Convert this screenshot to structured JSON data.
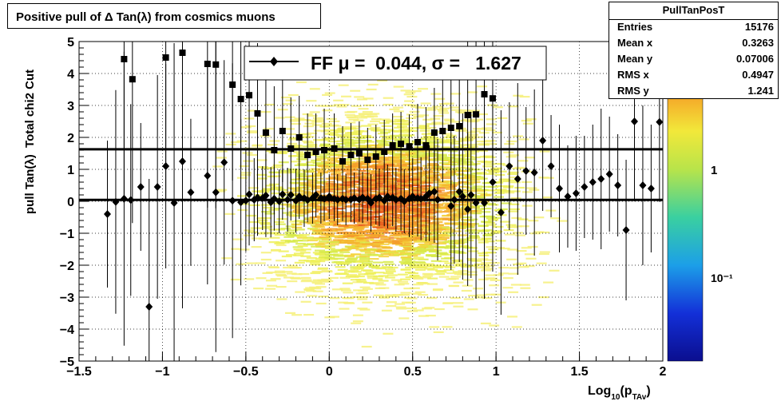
{
  "title": "Positive pull of Δ Tan(λ) from cosmics muons",
  "stats": {
    "name": "PullTanPosT",
    "rows": [
      {
        "label": "Entries",
        "value": "15176"
      },
      {
        "label": "Mean x",
        "value": "0.3263"
      },
      {
        "label": "Mean y",
        "value": "0.07006"
      },
      {
        "label": "RMS x",
        "value": "0.4947"
      },
      {
        "label": "RMS y",
        "value": "1.241"
      }
    ]
  },
  "chart_data": {
    "type": "scatter",
    "title": "Positive pull of Δ Tan(λ) from cosmics muons",
    "xlabel": "Log10(pTAv)",
    "ylabel": "pull Tan(λ)  Total chi2 Cut",
    "xlim": [
      -1.5,
      2
    ],
    "ylim": [
      -5,
      5
    ],
    "xticks": [
      "−1.5",
      "−1",
      "−0.5",
      "0",
      "0.5",
      "1",
      "1.5",
      "2"
    ],
    "yticks": [
      "5",
      "4",
      "3",
      "2",
      "1",
      "0",
      "−1",
      "−2",
      "−3",
      "−4",
      "−5"
    ],
    "colorbar_labels": [
      "1",
      "10⁻¹"
    ],
    "legend": {
      "label": "FF μ =  0.044, σ =   1.627",
      "position": "top-center"
    },
    "hlines": [
      0.044,
      1.627
    ],
    "series": [
      {
        "marker": "diamond",
        "x": [
          -1.33,
          -1.28,
          -1.23,
          -1.19,
          -1.13,
          -1.08,
          -1.03,
          -0.98,
          -0.93,
          -0.88,
          -0.83,
          -0.73,
          -0.68,
          -0.63,
          -0.58,
          -0.53,
          -0.5,
          -0.48,
          -0.45,
          -0.43,
          -0.4,
          -0.38,
          -0.35,
          -0.33,
          -0.3,
          -0.28,
          -0.25,
          -0.23,
          -0.2,
          -0.18,
          -0.15,
          -0.13,
          -0.1,
          -0.08,
          -0.05,
          -0.03,
          0.0,
          0.03,
          0.05,
          0.08,
          0.1,
          0.13,
          0.15,
          0.18,
          0.2,
          0.23,
          0.25,
          0.28,
          0.3,
          0.33,
          0.35,
          0.38,
          0.4,
          0.43,
          0.45,
          0.48,
          0.5,
          0.53,
          0.55,
          0.58,
          0.6,
          0.63,
          0.65,
          0.73,
          0.75,
          0.78,
          0.8,
          0.83,
          0.85,
          0.88,
          0.93,
          0.98,
          1.03,
          1.08,
          1.13,
          1.18,
          1.23,
          1.28,
          1.33,
          1.38,
          1.43,
          1.48,
          1.53,
          1.58,
          1.63,
          1.68,
          1.73,
          1.78,
          1.83,
          1.88,
          1.93,
          1.98
        ],
        "y": [
          -0.4,
          -0.02,
          0.08,
          0.04,
          0.45,
          -3.3,
          0.45,
          1.1,
          -0.05,
          1.25,
          0.28,
          0.8,
          0.28,
          1.22,
          0.02,
          -0.03,
          0.02,
          0.22,
          0.05,
          0.12,
          0.1,
          0.18,
          -0.03,
          0.08,
          0.0,
          0.22,
          0.05,
          0.2,
          0.02,
          0.15,
          0.1,
          0.04,
          0.1,
          0.2,
          0.1,
          0.08,
          0.15,
          0.08,
          0.05,
          0.08,
          0.05,
          0.06,
          0.1,
          0.06,
          0.12,
          0.08,
          -0.05,
          0.08,
          0.12,
          0.02,
          0.15,
          0.12,
          0.05,
          0.08,
          0.0,
          0.08,
          0.15,
          0.1,
          0.08,
          0.15,
          0.25,
          0.3,
          0.05,
          -0.15,
          0.05,
          0.3,
          0.15,
          -0.25,
          0.2,
          -0.05,
          -0.05,
          0.6,
          -0.35,
          1.1,
          0.7,
          0.95,
          0.9,
          1.9,
          1.1,
          0.4,
          0.15,
          0.25,
          0.45,
          0.6,
          0.7,
          0.85,
          0.5,
          -0.9,
          2.5,
          0.5,
          0.4,
          2.48
        ],
        "err": [
          2.3,
          3.5,
          4.6,
          3.0,
          2.0,
          4.0,
          3.5,
          3.2,
          5.0,
          4.6,
          2.3,
          3.4,
          5.0,
          3.2,
          4.3,
          2.6,
          1.6,
          1.6,
          1.3,
          1.2,
          1.0,
          1.3,
          1.1,
          1.0,
          1.0,
          0.8,
          1.0,
          0.8,
          1.0,
          0.7,
          0.9,
          0.7,
          0.8,
          0.7,
          0.8,
          0.7,
          0.7,
          0.7,
          0.8,
          0.7,
          0.8,
          0.7,
          0.8,
          0.7,
          0.8,
          0.7,
          0.9,
          0.8,
          0.9,
          0.8,
          1.0,
          0.9,
          1.0,
          1.0,
          1.0,
          1.2,
          1.2,
          1.2,
          1.3,
          1.4,
          1.5,
          1.6,
          1.9,
          2.0,
          2.0,
          2.2,
          2.6,
          2.4,
          2.6,
          3.0,
          3.0,
          2.8,
          3.2,
          2.0,
          3.0,
          2.0,
          2.6,
          2.2,
          1.6,
          2.0,
          1.6,
          1.8,
          1.6,
          1.8,
          2.2,
          1.8,
          1.6,
          2.2,
          2.5,
          2.5,
          2.0,
          2.5
        ]
      },
      {
        "marker": "square",
        "x": [
          -1.23,
          -1.18,
          -0.98,
          -0.88,
          -0.73,
          -0.68,
          -0.58,
          -0.53,
          -0.48,
          -0.43,
          -0.38,
          -0.33,
          -0.28,
          -0.23,
          -0.18,
          -0.13,
          -0.08,
          -0.03,
          0.03,
          0.08,
          0.13,
          0.18,
          0.23,
          0.28,
          0.33,
          0.38,
          0.43,
          0.48,
          0.53,
          0.58,
          0.63,
          0.68,
          0.73,
          0.78,
          0.83,
          0.88,
          0.93,
          0.98
        ],
        "y": [
          4.45,
          3.82,
          4.5,
          4.65,
          4.3,
          4.28,
          3.65,
          3.2,
          3.32,
          2.75,
          2.15,
          1.6,
          2.2,
          1.65,
          2.0,
          1.45,
          1.55,
          1.6,
          1.65,
          1.25,
          1.45,
          1.5,
          1.3,
          1.4,
          1.55,
          1.75,
          1.8,
          1.72,
          1.85,
          1.75,
          2.15,
          2.2,
          2.3,
          2.35,
          2.7,
          2.72,
          3.35,
          3.22
        ],
        "err": [
          4.5,
          4.5,
          4.5,
          4.5,
          4.5,
          4.5,
          3.0,
          2.2,
          2.5,
          2.2,
          2.0,
          2.0,
          1.6,
          1.6,
          1.3,
          1.3,
          1.2,
          1.3,
          1.1,
          1.1,
          1.0,
          1.0,
          1.0,
          1.0,
          1.0,
          1.0,
          1.0,
          1.0,
          1.2,
          1.2,
          1.4,
          1.6,
          1.8,
          2.0,
          2.4,
          2.6,
          3.0,
          3.0
        ]
      }
    ]
  }
}
